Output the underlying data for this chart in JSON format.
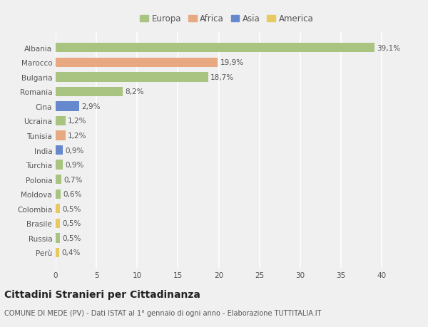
{
  "countries": [
    "Albania",
    "Marocco",
    "Bulgaria",
    "Romania",
    "Cina",
    "Ucraina",
    "Tunisia",
    "India",
    "Turchia",
    "Polonia",
    "Moldova",
    "Colombia",
    "Brasile",
    "Russia",
    "Perù"
  ],
  "values": [
    39.1,
    19.9,
    18.7,
    8.2,
    2.9,
    1.2,
    1.2,
    0.9,
    0.9,
    0.7,
    0.6,
    0.5,
    0.5,
    0.5,
    0.4
  ],
  "labels": [
    "39,1%",
    "19,9%",
    "18,7%",
    "8,2%",
    "2,9%",
    "1,2%",
    "1,2%",
    "0,9%",
    "0,9%",
    "0,7%",
    "0,6%",
    "0,5%",
    "0,5%",
    "0,5%",
    "0,4%"
  ],
  "continents": [
    "Europa",
    "Africa",
    "Europa",
    "Europa",
    "Asia",
    "Europa",
    "Africa",
    "Asia",
    "Europa",
    "Europa",
    "Europa",
    "America",
    "America",
    "Europa",
    "America"
  ],
  "colors": {
    "Europa": "#a8c480",
    "Africa": "#e8a882",
    "Asia": "#6688cc",
    "America": "#e8c860"
  },
  "xlim": [
    0,
    42
  ],
  "xticks": [
    0,
    5,
    10,
    15,
    20,
    25,
    30,
    35,
    40
  ],
  "background_color": "#f0f0f0",
  "title": "Cittadini Stranieri per Cittadinanza",
  "subtitle": "COMUNE DI MEDE (PV) - Dati ISTAT al 1° gennaio di ogni anno - Elaborazione TUTTITALIA.IT",
  "bar_height": 0.65,
  "label_fontsize": 7.5,
  "tick_fontsize": 7.5,
  "legend_fontsize": 8.5,
  "title_fontsize": 10,
  "subtitle_fontsize": 7,
  "legend_order": [
    "Europa",
    "Africa",
    "Asia",
    "America"
  ]
}
